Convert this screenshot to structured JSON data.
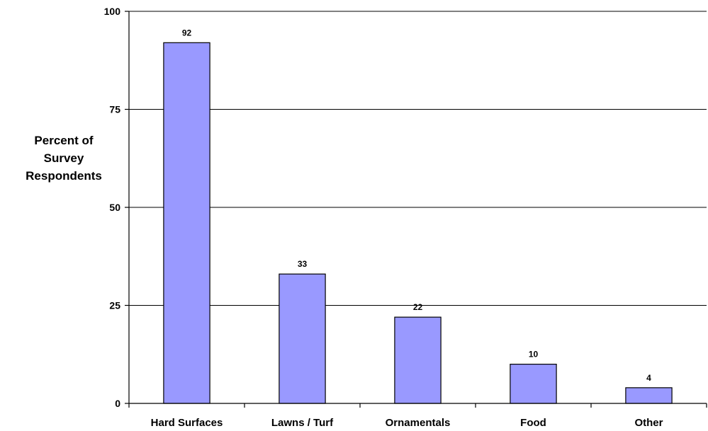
{
  "chart_data": {
    "type": "bar",
    "title": "",
    "xlabel": "",
    "ylabel_lines": [
      "Percent of",
      "Survey",
      "Respondents"
    ],
    "categories": [
      "Hard Surfaces",
      "Lawns / Turf",
      "Ornamentals",
      "Food",
      "Other"
    ],
    "values": [
      92,
      33,
      22,
      10,
      4
    ],
    "data_labels": [
      "92",
      "33",
      "22",
      "10",
      "4"
    ],
    "ylim": [
      0,
      100
    ],
    "yticks": [
      0,
      25,
      50,
      75,
      100
    ],
    "ytick_labels": [
      "0",
      "25",
      "50",
      "75",
      "100"
    ],
    "grid": true,
    "legend": "none",
    "bar_color": "#9999FF",
    "bar_edge_color": "#000000"
  }
}
